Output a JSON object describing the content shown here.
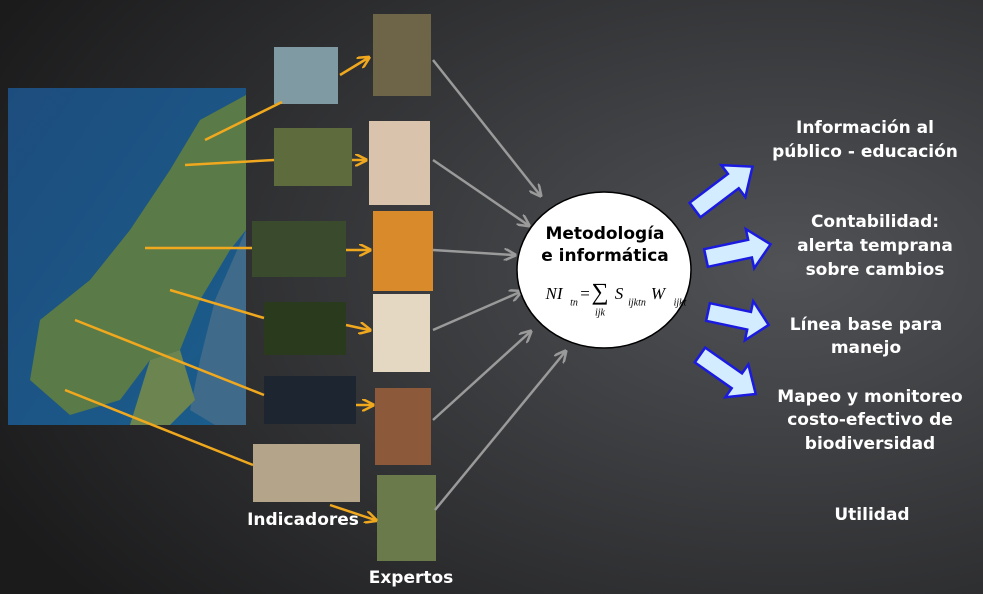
{
  "center": {
    "lines": [
      "Metodología",
      "e informática"
    ],
    "formula": {
      "lhs": "NI",
      "lhs_sub": "tn",
      "eq": "=",
      "sum": "∑",
      "sum_sub": "ijk",
      "s": "S",
      "s_sub": "ijktn",
      "w": "W",
      "w_sub": "ijkt"
    }
  },
  "labels": {
    "indicators": "Indicadores",
    "experts": "Expertos",
    "utility": "Utilidad"
  },
  "outcomes": [
    {
      "lines": [
        "Información al",
        "público - educación"
      ]
    },
    {
      "lines": [
        "Contabilidad:",
        "alerta temprana",
        "sobre cambios"
      ]
    },
    {
      "lines": [
        "Línea base para",
        "manejo"
      ]
    },
    {
      "lines": [
        "Mapeo y monitoreo",
        "costo-efectivo de",
        "biodiversidad"
      ]
    }
  ]
}
